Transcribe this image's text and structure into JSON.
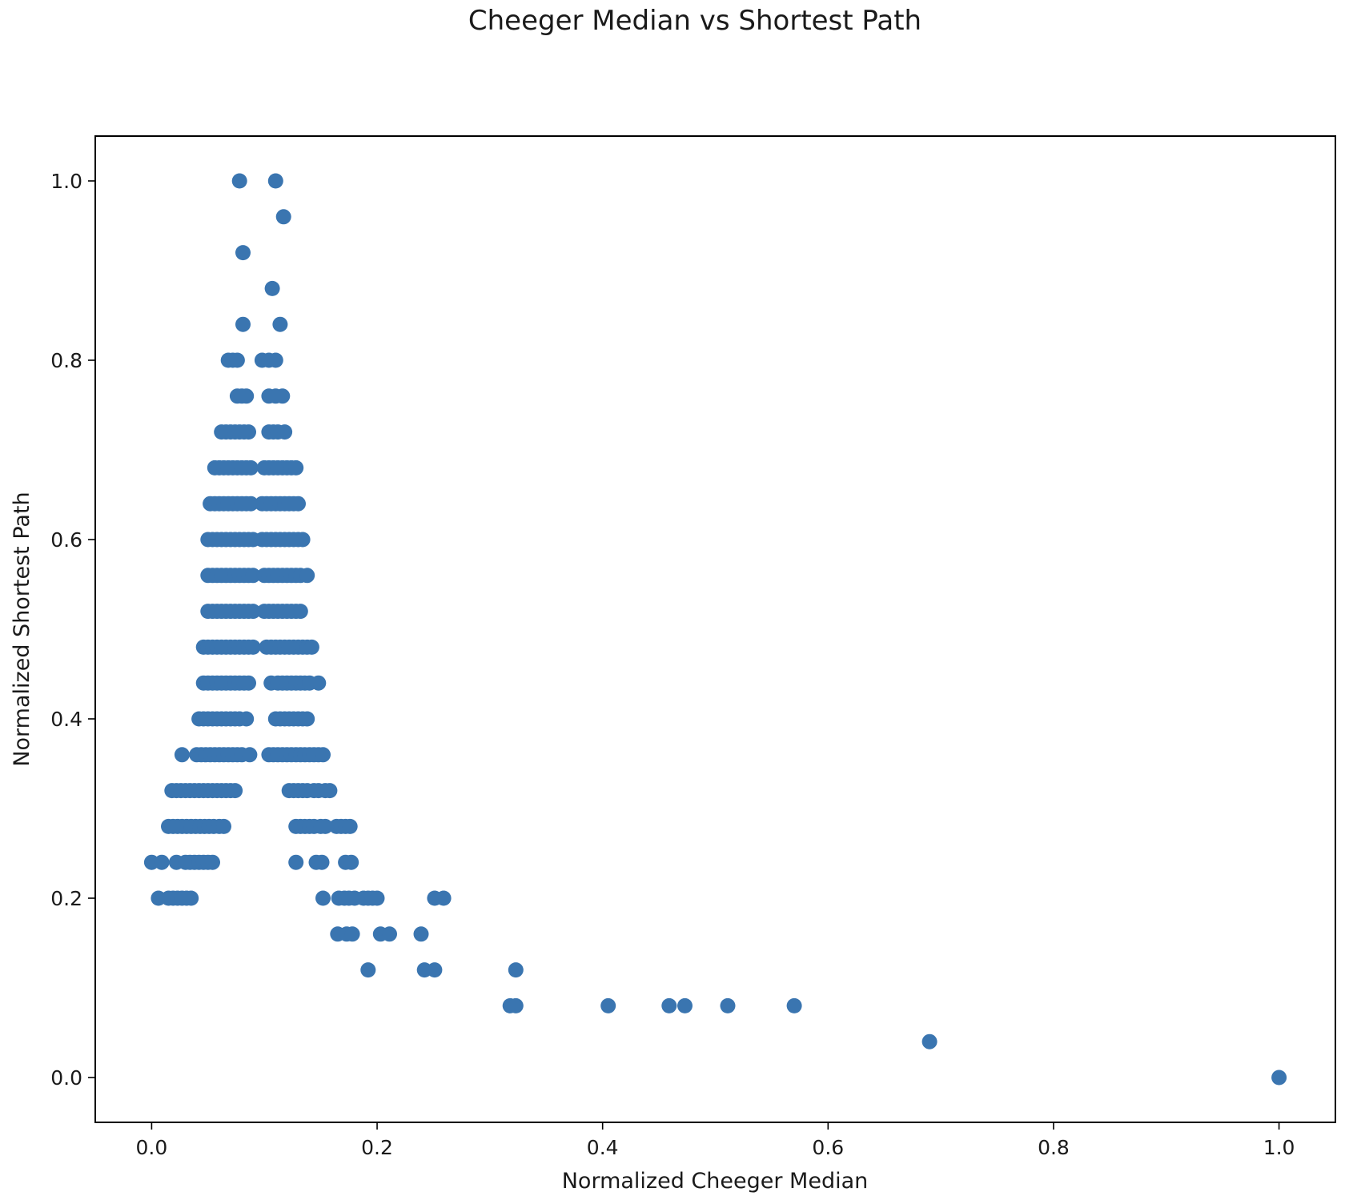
{
  "chart_data": {
    "type": "scatter",
    "title": "Cheeger Median vs Shortest Path",
    "xlabel": "Normalized Cheeger Median",
    "ylabel": "Normalized Shortest Path",
    "xlim": [
      -0.05,
      1.05
    ],
    "ylim": [
      -0.05,
      1.05
    ],
    "x_ticks": [
      "0.0",
      "0.2",
      "0.4",
      "0.6",
      "0.8",
      "1.0"
    ],
    "y_ticks": [
      "0.0",
      "0.2",
      "0.4",
      "0.6",
      "0.8",
      "1.0"
    ],
    "grid": false,
    "marker_color": "#3a75b0",
    "points": [
      [
        0.078,
        1.0
      ],
      [
        0.11,
        1.0
      ],
      [
        0.117,
        0.96
      ],
      [
        0.081,
        0.92
      ],
      [
        0.107,
        0.88
      ],
      [
        0.081,
        0.84
      ],
      [
        0.114,
        0.84
      ],
      [
        0.068,
        0.8
      ],
      [
        0.072,
        0.8
      ],
      [
        0.076,
        0.8
      ],
      [
        0.098,
        0.8
      ],
      [
        0.104,
        0.8
      ],
      [
        0.11,
        0.8
      ],
      [
        0.076,
        0.76
      ],
      [
        0.08,
        0.76
      ],
      [
        0.084,
        0.76
      ],
      [
        0.104,
        0.76
      ],
      [
        0.11,
        0.76
      ],
      [
        0.116,
        0.76
      ],
      [
        0.062,
        0.72
      ],
      [
        0.066,
        0.72
      ],
      [
        0.07,
        0.72
      ],
      [
        0.074,
        0.72
      ],
      [
        0.078,
        0.72
      ],
      [
        0.082,
        0.72
      ],
      [
        0.086,
        0.72
      ],
      [
        0.104,
        0.72
      ],
      [
        0.108,
        0.72
      ],
      [
        0.112,
        0.72
      ],
      [
        0.118,
        0.72
      ],
      [
        0.056,
        0.68
      ],
      [
        0.06,
        0.68
      ],
      [
        0.064,
        0.68
      ],
      [
        0.068,
        0.68
      ],
      [
        0.072,
        0.68
      ],
      [
        0.076,
        0.68
      ],
      [
        0.08,
        0.68
      ],
      [
        0.084,
        0.68
      ],
      [
        0.088,
        0.68
      ],
      [
        0.1,
        0.68
      ],
      [
        0.104,
        0.68
      ],
      [
        0.108,
        0.68
      ],
      [
        0.112,
        0.68
      ],
      [
        0.116,
        0.68
      ],
      [
        0.12,
        0.68
      ],
      [
        0.124,
        0.68
      ],
      [
        0.128,
        0.68
      ],
      [
        0.052,
        0.64
      ],
      [
        0.056,
        0.64
      ],
      [
        0.06,
        0.64
      ],
      [
        0.064,
        0.64
      ],
      [
        0.068,
        0.64
      ],
      [
        0.072,
        0.64
      ],
      [
        0.076,
        0.64
      ],
      [
        0.08,
        0.64
      ],
      [
        0.084,
        0.64
      ],
      [
        0.088,
        0.64
      ],
      [
        0.098,
        0.64
      ],
      [
        0.102,
        0.64
      ],
      [
        0.106,
        0.64
      ],
      [
        0.11,
        0.64
      ],
      [
        0.114,
        0.64
      ],
      [
        0.118,
        0.64
      ],
      [
        0.122,
        0.64
      ],
      [
        0.126,
        0.64
      ],
      [
        0.13,
        0.64
      ],
      [
        0.05,
        0.6
      ],
      [
        0.054,
        0.6
      ],
      [
        0.058,
        0.6
      ],
      [
        0.062,
        0.6
      ],
      [
        0.066,
        0.6
      ],
      [
        0.07,
        0.6
      ],
      [
        0.074,
        0.6
      ],
      [
        0.078,
        0.6
      ],
      [
        0.082,
        0.6
      ],
      [
        0.086,
        0.6
      ],
      [
        0.09,
        0.6
      ],
      [
        0.098,
        0.6
      ],
      [
        0.102,
        0.6
      ],
      [
        0.106,
        0.6
      ],
      [
        0.11,
        0.6
      ],
      [
        0.114,
        0.6
      ],
      [
        0.118,
        0.6
      ],
      [
        0.122,
        0.6
      ],
      [
        0.126,
        0.6
      ],
      [
        0.13,
        0.6
      ],
      [
        0.134,
        0.6
      ],
      [
        0.05,
        0.56
      ],
      [
        0.054,
        0.56
      ],
      [
        0.058,
        0.56
      ],
      [
        0.062,
        0.56
      ],
      [
        0.066,
        0.56
      ],
      [
        0.07,
        0.56
      ],
      [
        0.074,
        0.56
      ],
      [
        0.078,
        0.56
      ],
      [
        0.082,
        0.56
      ],
      [
        0.086,
        0.56
      ],
      [
        0.09,
        0.56
      ],
      [
        0.1,
        0.56
      ],
      [
        0.104,
        0.56
      ],
      [
        0.108,
        0.56
      ],
      [
        0.112,
        0.56
      ],
      [
        0.116,
        0.56
      ],
      [
        0.12,
        0.56
      ],
      [
        0.124,
        0.56
      ],
      [
        0.128,
        0.56
      ],
      [
        0.132,
        0.56
      ],
      [
        0.138,
        0.56
      ],
      [
        0.05,
        0.52
      ],
      [
        0.054,
        0.52
      ],
      [
        0.058,
        0.52
      ],
      [
        0.062,
        0.52
      ],
      [
        0.066,
        0.52
      ],
      [
        0.07,
        0.52
      ],
      [
        0.074,
        0.52
      ],
      [
        0.078,
        0.52
      ],
      [
        0.082,
        0.52
      ],
      [
        0.086,
        0.52
      ],
      [
        0.09,
        0.52
      ],
      [
        0.1,
        0.52
      ],
      [
        0.104,
        0.52
      ],
      [
        0.108,
        0.52
      ],
      [
        0.112,
        0.52
      ],
      [
        0.116,
        0.52
      ],
      [
        0.12,
        0.52
      ],
      [
        0.124,
        0.52
      ],
      [
        0.128,
        0.52
      ],
      [
        0.132,
        0.52
      ],
      [
        0.046,
        0.48
      ],
      [
        0.05,
        0.48
      ],
      [
        0.054,
        0.48
      ],
      [
        0.058,
        0.48
      ],
      [
        0.062,
        0.48
      ],
      [
        0.066,
        0.48
      ],
      [
        0.07,
        0.48
      ],
      [
        0.074,
        0.48
      ],
      [
        0.078,
        0.48
      ],
      [
        0.082,
        0.48
      ],
      [
        0.086,
        0.48
      ],
      [
        0.09,
        0.48
      ],
      [
        0.102,
        0.48
      ],
      [
        0.106,
        0.48
      ],
      [
        0.11,
        0.48
      ],
      [
        0.114,
        0.48
      ],
      [
        0.118,
        0.48
      ],
      [
        0.122,
        0.48
      ],
      [
        0.126,
        0.48
      ],
      [
        0.13,
        0.48
      ],
      [
        0.134,
        0.48
      ],
      [
        0.138,
        0.48
      ],
      [
        0.142,
        0.48
      ],
      [
        0.046,
        0.44
      ],
      [
        0.05,
        0.44
      ],
      [
        0.054,
        0.44
      ],
      [
        0.058,
        0.44
      ],
      [
        0.062,
        0.44
      ],
      [
        0.066,
        0.44
      ],
      [
        0.07,
        0.44
      ],
      [
        0.074,
        0.44
      ],
      [
        0.078,
        0.44
      ],
      [
        0.082,
        0.44
      ],
      [
        0.086,
        0.44
      ],
      [
        0.106,
        0.44
      ],
      [
        0.112,
        0.44
      ],
      [
        0.116,
        0.44
      ],
      [
        0.12,
        0.44
      ],
      [
        0.124,
        0.44
      ],
      [
        0.128,
        0.44
      ],
      [
        0.132,
        0.44
      ],
      [
        0.136,
        0.44
      ],
      [
        0.14,
        0.44
      ],
      [
        0.148,
        0.44
      ],
      [
        0.042,
        0.4
      ],
      [
        0.046,
        0.4
      ],
      [
        0.05,
        0.4
      ],
      [
        0.054,
        0.4
      ],
      [
        0.058,
        0.4
      ],
      [
        0.062,
        0.4
      ],
      [
        0.066,
        0.4
      ],
      [
        0.07,
        0.4
      ],
      [
        0.074,
        0.4
      ],
      [
        0.078,
        0.4
      ],
      [
        0.084,
        0.4
      ],
      [
        0.11,
        0.4
      ],
      [
        0.114,
        0.4
      ],
      [
        0.118,
        0.4
      ],
      [
        0.122,
        0.4
      ],
      [
        0.126,
        0.4
      ],
      [
        0.13,
        0.4
      ],
      [
        0.134,
        0.4
      ],
      [
        0.138,
        0.4
      ],
      [
        0.027,
        0.36
      ],
      [
        0.04,
        0.36
      ],
      [
        0.044,
        0.36
      ],
      [
        0.048,
        0.36
      ],
      [
        0.052,
        0.36
      ],
      [
        0.056,
        0.36
      ],
      [
        0.06,
        0.36
      ],
      [
        0.064,
        0.36
      ],
      [
        0.068,
        0.36
      ],
      [
        0.072,
        0.36
      ],
      [
        0.076,
        0.36
      ],
      [
        0.08,
        0.36
      ],
      [
        0.087,
        0.36
      ],
      [
        0.104,
        0.36
      ],
      [
        0.108,
        0.36
      ],
      [
        0.112,
        0.36
      ],
      [
        0.116,
        0.36
      ],
      [
        0.12,
        0.36
      ],
      [
        0.124,
        0.36
      ],
      [
        0.128,
        0.36
      ],
      [
        0.132,
        0.36
      ],
      [
        0.136,
        0.36
      ],
      [
        0.14,
        0.36
      ],
      [
        0.144,
        0.36
      ],
      [
        0.148,
        0.36
      ],
      [
        0.152,
        0.36
      ],
      [
        0.018,
        0.32
      ],
      [
        0.022,
        0.32
      ],
      [
        0.026,
        0.32
      ],
      [
        0.03,
        0.32
      ],
      [
        0.034,
        0.32
      ],
      [
        0.038,
        0.32
      ],
      [
        0.042,
        0.32
      ],
      [
        0.046,
        0.32
      ],
      [
        0.05,
        0.32
      ],
      [
        0.054,
        0.32
      ],
      [
        0.058,
        0.32
      ],
      [
        0.062,
        0.32
      ],
      [
        0.066,
        0.32
      ],
      [
        0.07,
        0.32
      ],
      [
        0.074,
        0.32
      ],
      [
        0.122,
        0.32
      ],
      [
        0.126,
        0.32
      ],
      [
        0.13,
        0.32
      ],
      [
        0.134,
        0.32
      ],
      [
        0.138,
        0.32
      ],
      [
        0.144,
        0.32
      ],
      [
        0.148,
        0.32
      ],
      [
        0.154,
        0.32
      ],
      [
        0.158,
        0.32
      ],
      [
        0.015,
        0.28
      ],
      [
        0.019,
        0.28
      ],
      [
        0.023,
        0.28
      ],
      [
        0.027,
        0.28
      ],
      [
        0.031,
        0.28
      ],
      [
        0.035,
        0.28
      ],
      [
        0.039,
        0.28
      ],
      [
        0.043,
        0.28
      ],
      [
        0.047,
        0.28
      ],
      [
        0.051,
        0.28
      ],
      [
        0.055,
        0.28
      ],
      [
        0.06,
        0.28
      ],
      [
        0.064,
        0.28
      ],
      [
        0.128,
        0.28
      ],
      [
        0.132,
        0.28
      ],
      [
        0.136,
        0.28
      ],
      [
        0.14,
        0.28
      ],
      [
        0.144,
        0.28
      ],
      [
        0.15,
        0.28
      ],
      [
        0.154,
        0.28
      ],
      [
        0.164,
        0.28
      ],
      [
        0.168,
        0.28
      ],
      [
        0.172,
        0.28
      ],
      [
        0.176,
        0.28
      ],
      [
        0.0,
        0.24
      ],
      [
        0.009,
        0.24
      ],
      [
        0.022,
        0.24
      ],
      [
        0.03,
        0.24
      ],
      [
        0.034,
        0.24
      ],
      [
        0.038,
        0.24
      ],
      [
        0.042,
        0.24
      ],
      [
        0.046,
        0.24
      ],
      [
        0.05,
        0.24
      ],
      [
        0.054,
        0.24
      ],
      [
        0.128,
        0.24
      ],
      [
        0.146,
        0.24
      ],
      [
        0.151,
        0.24
      ],
      [
        0.172,
        0.24
      ],
      [
        0.177,
        0.24
      ],
      [
        0.006,
        0.2
      ],
      [
        0.015,
        0.2
      ],
      [
        0.019,
        0.2
      ],
      [
        0.023,
        0.2
      ],
      [
        0.027,
        0.2
      ],
      [
        0.031,
        0.2
      ],
      [
        0.035,
        0.2
      ],
      [
        0.152,
        0.2
      ],
      [
        0.166,
        0.2
      ],
      [
        0.171,
        0.2
      ],
      [
        0.175,
        0.2
      ],
      [
        0.18,
        0.2
      ],
      [
        0.188,
        0.2
      ],
      [
        0.192,
        0.2
      ],
      [
        0.196,
        0.2
      ],
      [
        0.2,
        0.2
      ],
      [
        0.251,
        0.2
      ],
      [
        0.259,
        0.2
      ],
      [
        0.165,
        0.16
      ],
      [
        0.173,
        0.16
      ],
      [
        0.178,
        0.16
      ],
      [
        0.203,
        0.16
      ],
      [
        0.211,
        0.16
      ],
      [
        0.239,
        0.16
      ],
      [
        0.192,
        0.12
      ],
      [
        0.242,
        0.12
      ],
      [
        0.251,
        0.12
      ],
      [
        0.323,
        0.12
      ],
      [
        0.318,
        0.08
      ],
      [
        0.323,
        0.08
      ],
      [
        0.405,
        0.08
      ],
      [
        0.459,
        0.08
      ],
      [
        0.473,
        0.08
      ],
      [
        0.511,
        0.08
      ],
      [
        0.57,
        0.08
      ],
      [
        0.69,
        0.04
      ],
      [
        1.0,
        0.0
      ]
    ]
  }
}
